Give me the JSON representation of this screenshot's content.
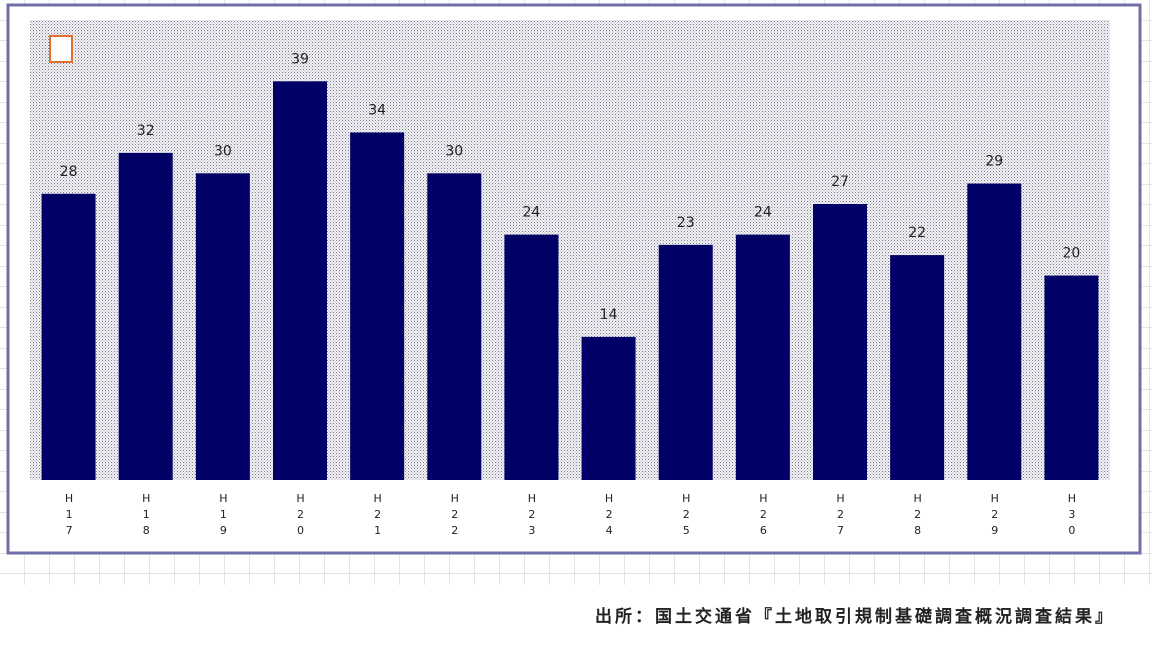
{
  "chart_data": {
    "type": "bar",
    "categories": [
      "H17",
      "H18",
      "H19",
      "H20",
      "H21",
      "H22",
      "H23",
      "H24",
      "H25",
      "H26",
      "H27",
      "H28",
      "H29",
      "H30"
    ],
    "values": [
      28,
      32,
      30,
      39,
      34,
      30,
      24,
      14,
      23,
      24,
      27,
      22,
      29,
      20
    ],
    "color": "#000066",
    "ylim": [
      0,
      45
    ],
    "source": "出所：国土交通省『土地取引規制基礎調査概況調査結果』"
  }
}
